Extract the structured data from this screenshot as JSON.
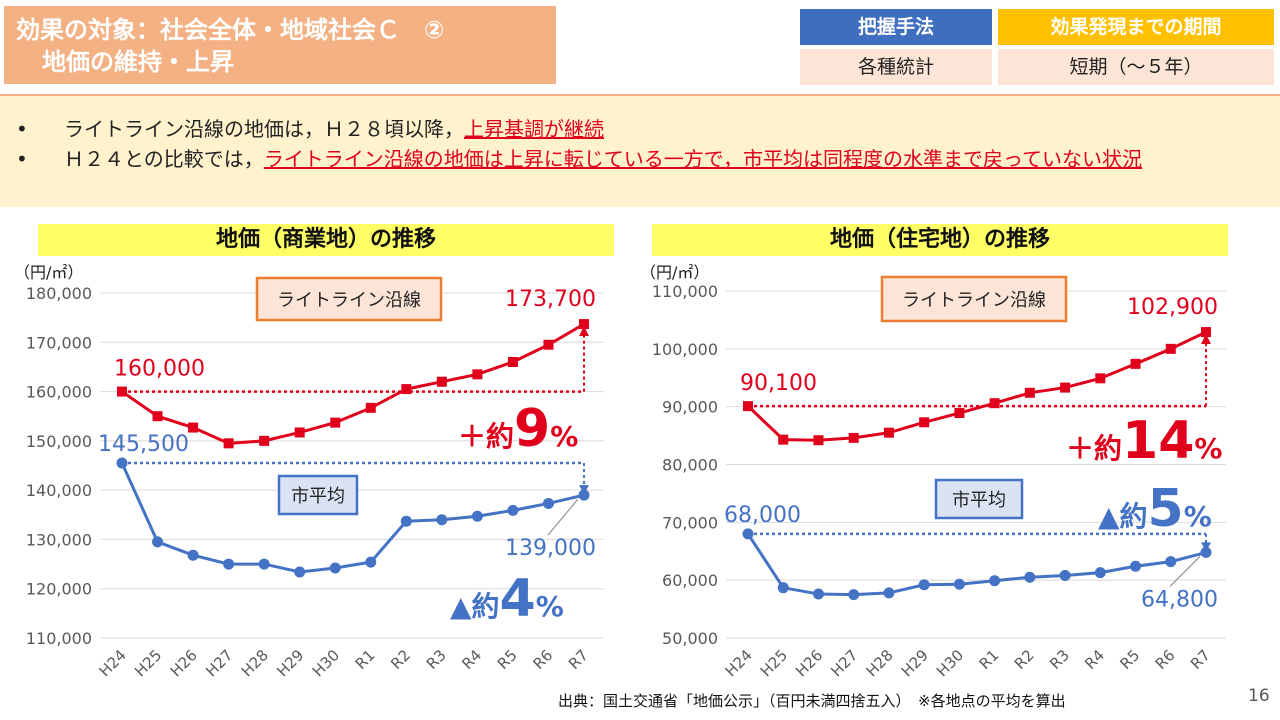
{
  "title": {
    "line1": "効果の対象：社会全体・地域社会Ｃ　②",
    "line2": "地価の維持・上昇"
  },
  "header_table": {
    "col1_header": "把握手法",
    "col1_value": "各種統計",
    "col2_header": "効果発現までの期間",
    "col2_value": "短期（～５年）"
  },
  "colors": {
    "commercial_red": "#e0001b",
    "city_blue": "#4472c4",
    "header_blue": "#3f6ebf",
    "header_gold": "#ffc000"
  },
  "bullets": [
    {
      "dot": "•",
      "plain": "ライトライン沿線の地価は，Ｈ２８頃以降，",
      "highlight": "上昇基調が継続"
    },
    {
      "dot": "•",
      "plain": "Ｈ２４との比較では，",
      "highlight": "ライトライン沿線の地価は上昇に転じている一方で，市平均は同程度の水準まで戻っていない状況"
    }
  ],
  "source": "出典：国土交通省「地価公示」（百円未満四捨五入）　※各地点の平均を算出",
  "page_number": "16",
  "chart_data": [
    {
      "type": "line",
      "title": "地価（商業地）の推移",
      "unit_label": "（円/㎡）",
      "categories": [
        "H24",
        "H25",
        "H26",
        "H27",
        "H28",
        "H29",
        "H30",
        "R1",
        "R2",
        "R3",
        "R4",
        "R5",
        "R6",
        "R7"
      ],
      "ylim": [
        110000,
        180000
      ],
      "yticks": [
        110000,
        120000,
        130000,
        140000,
        150000,
        160000,
        170000,
        180000
      ],
      "ytick_labels": [
        "110,000",
        "120,000",
        "130,000",
        "140,000",
        "150,000",
        "160,000",
        "170,000",
        "180,000"
      ],
      "series": [
        {
          "name": "ライトライン沿線",
          "color": "#e0001b",
          "marker": "square",
          "values": [
            160000,
            155000,
            152700,
            149500,
            150000,
            151700,
            153700,
            156700,
            160500,
            162000,
            163500,
            166000,
            169500,
            173700
          ],
          "start_label": "160,000",
          "end_label": "173,700"
        },
        {
          "name": "市平均",
          "color": "#4472c4",
          "marker": "circle",
          "values": [
            145500,
            129500,
            126800,
            125000,
            125000,
            123400,
            124200,
            125400,
            133700,
            134000,
            134700,
            135900,
            137300,
            139000
          ],
          "start_label": "145,500",
          "end_label": "139,000"
        }
      ],
      "annotations": {
        "red_change": "＋約",
        "red_num": "9",
        "red_pct": "%",
        "blue_change": "▲約",
        "blue_num": "4",
        "blue_pct": "%"
      }
    },
    {
      "type": "line",
      "title": "地価（住宅地）の推移",
      "unit_label": "（円/㎡）",
      "categories": [
        "H24",
        "H25",
        "H26",
        "H27",
        "H28",
        "H29",
        "H30",
        "R1",
        "R2",
        "R3",
        "R4",
        "R5",
        "R6",
        "R7"
      ],
      "ylim": [
        50000,
        110000
      ],
      "yticks": [
        50000,
        60000,
        70000,
        80000,
        90000,
        100000,
        110000
      ],
      "ytick_labels": [
        "50,000",
        "60,000",
        "70,000",
        "80,000",
        "90,000",
        "100,000",
        "110,000"
      ],
      "series": [
        {
          "name": "ライトライン沿線",
          "color": "#e0001b",
          "marker": "square",
          "values": [
            90100,
            84300,
            84200,
            84600,
            85500,
            87300,
            88900,
            90600,
            92400,
            93300,
            94900,
            97400,
            100000,
            102900
          ],
          "start_label": "90,100",
          "end_label": "102,900"
        },
        {
          "name": "市平均",
          "color": "#4472c4",
          "marker": "circle",
          "values": [
            68000,
            58700,
            57600,
            57500,
            57800,
            59200,
            59300,
            59900,
            60500,
            60800,
            61300,
            62400,
            63200,
            64800
          ],
          "start_label": "68,000",
          "end_label": "64,800"
        }
      ],
      "annotations": {
        "red_change": "＋約",
        "red_num": "14",
        "red_pct": "%",
        "blue_change": "▲約",
        "blue_num": "5",
        "blue_pct": "%"
      }
    }
  ]
}
